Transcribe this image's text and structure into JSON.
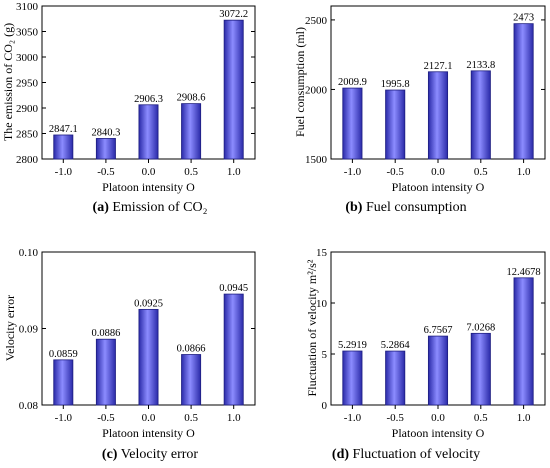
{
  "chart_data": [
    {
      "type": "bar",
      "categories": [
        "-1.0",
        "-0.5",
        "0.0",
        "0.5",
        "1.0"
      ],
      "values": [
        2847.1,
        2840.3,
        2906.3,
        2908.6,
        3072.2
      ],
      "value_labels": [
        "2847.1",
        "2840.3",
        "2906.3",
        "2908.6",
        "3072.2"
      ],
      "xlabel": "Platoon intensity O",
      "ylabel": "The emission of CO₂ (g)",
      "ylim": [
        2800,
        3100
      ],
      "yticks": [
        2800,
        2850,
        2900,
        2950,
        3000,
        3050,
        3100
      ],
      "ytick_labels": [
        "2800",
        "2850",
        "2900",
        "2950",
        "3000",
        "3050",
        "3100"
      ],
      "caption_tag": "(a)",
      "caption_text": "Emission of CO₂",
      "bar_color": "#5a5ae6",
      "grid": false
    },
    {
      "type": "bar",
      "categories": [
        "-1.0",
        "-0.5",
        "0.0",
        "0.5",
        "1.0"
      ],
      "values": [
        2009.9,
        1995.8,
        2127.1,
        2133.8,
        2473
      ],
      "value_labels": [
        "2009.9",
        "1995.8",
        "2127.1",
        "2133.8",
        "2473"
      ],
      "xlabel": "Platoon intensity O",
      "ylabel": "Fuel consumption (ml)",
      "ylim": [
        1500,
        2600
      ],
      "yticks": [
        1500,
        2000,
        2500
      ],
      "ytick_labels": [
        "1500",
        "2000",
        "2500"
      ],
      "caption_tag": "(b)",
      "caption_text": "Fuel consumption",
      "bar_color": "#5a5ae6",
      "grid": false
    },
    {
      "type": "bar",
      "categories": [
        "-1.0",
        "-0.5",
        "0.0",
        "0.5",
        "1.0"
      ],
      "values": [
        0.0859,
        0.0886,
        0.0925,
        0.0866,
        0.0945
      ],
      "value_labels": [
        "0.0859",
        "0.0886",
        "0.0925",
        "0.0866",
        "0.0945"
      ],
      "xlabel": "Platoon intensity O",
      "ylabel": "Velocity error",
      "ylim": [
        0.08,
        0.1
      ],
      "yticks": [
        0.08,
        0.09,
        0.1
      ],
      "ytick_labels": [
        "0.08",
        "0.09",
        "0.10"
      ],
      "caption_tag": "(c)",
      "caption_text": "Velocity error",
      "bar_color": "#5a5ae6",
      "grid": false
    },
    {
      "type": "bar",
      "categories": [
        "-1.0",
        "-0.5",
        "0.0",
        "0.5",
        "1.0"
      ],
      "values": [
        5.2919,
        5.2864,
        6.7567,
        7.0268,
        12.4678
      ],
      "value_labels": [
        "5.2919",
        "5.2864",
        "6.7567",
        "7.0268",
        "12.4678"
      ],
      "xlabel": "Platoon intensity O",
      "ylabel": "Fluctuation of velocity m²/s²",
      "ylim": [
        0,
        15
      ],
      "yticks": [
        0,
        5,
        10,
        15
      ],
      "ytick_labels": [
        "0",
        "5",
        "10",
        "15"
      ],
      "caption_tag": "(d)",
      "caption_text": "Fluctuation of velocity",
      "bar_color": "#5a5ae6",
      "grid": false
    }
  ]
}
